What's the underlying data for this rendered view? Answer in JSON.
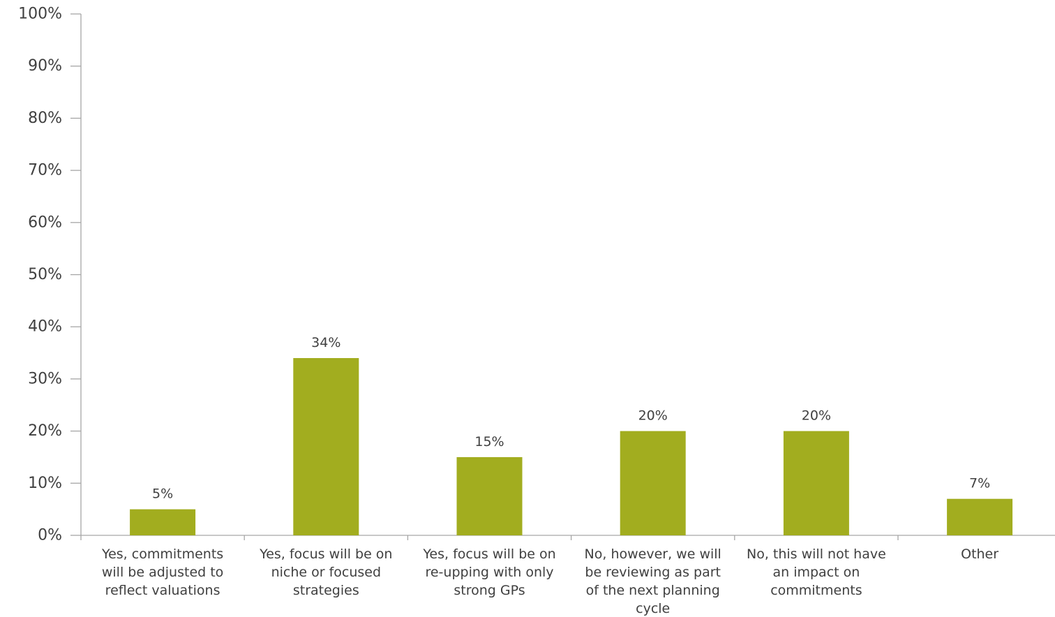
{
  "chart_data": {
    "type": "bar",
    "categories": [
      [
        "Yes, commitments",
        "will be adjusted to",
        "reflect valuations"
      ],
      [
        "Yes, focus will be on",
        "niche or focused",
        "strategies"
      ],
      [
        "Yes, focus will be on",
        "re-upping with only",
        "strong GPs"
      ],
      [
        "No, however, we will",
        "be reviewing as part",
        "of the next planning",
        "cycle"
      ],
      [
        "No, this will not have",
        "an impact on",
        "commitments"
      ],
      [
        "Other"
      ]
    ],
    "values": [
      5,
      34,
      15,
      20,
      20,
      7
    ],
    "data_labels": [
      "5%",
      "34%",
      "15%",
      "20%",
      "20%",
      "7%"
    ],
    "ylim": [
      0,
      100
    ],
    "yticks": [
      0,
      10,
      20,
      30,
      40,
      50,
      60,
      70,
      80,
      90,
      100
    ],
    "ytick_labels": [
      "0%",
      "10%",
      "20%",
      "30%",
      "40%",
      "50%",
      "60%",
      "70%",
      "80%",
      "90%",
      "100%"
    ],
    "grid": false,
    "legend": "none",
    "colors": {
      "bar": "#a2ad1f",
      "axis": "#a6a6a6",
      "text": "#404040"
    }
  }
}
